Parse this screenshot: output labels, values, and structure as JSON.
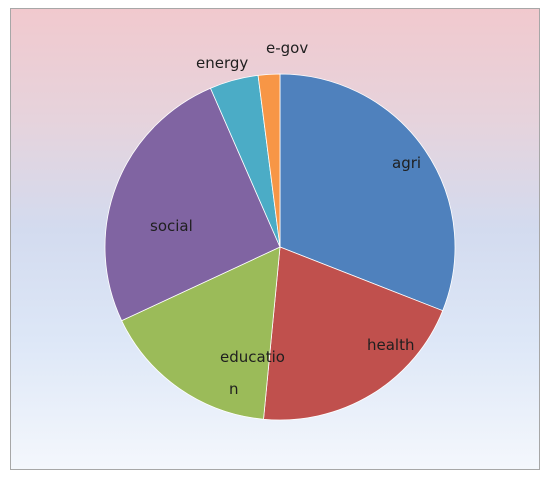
{
  "chart_data": {
    "type": "pie",
    "title": "",
    "start_angle_deg": 0,
    "direction": "clockwise",
    "slices": [
      {
        "label": "agri",
        "value": 31,
        "color": "#4f81bd"
      },
      {
        "label": "health",
        "value": 20.5,
        "color": "#c0504d"
      },
      {
        "label": "education",
        "value": 16.5,
        "color": "#9bbb59"
      },
      {
        "label": "social",
        "value": 25.5,
        "color": "#8064a2"
      },
      {
        "label": "energy",
        "value": 4.5,
        "color": "#4bacc6"
      },
      {
        "label": "e-gov",
        "value": 2,
        "color": "#f79646"
      }
    ],
    "legend": "none",
    "labels": "inside/outside slices"
  }
}
